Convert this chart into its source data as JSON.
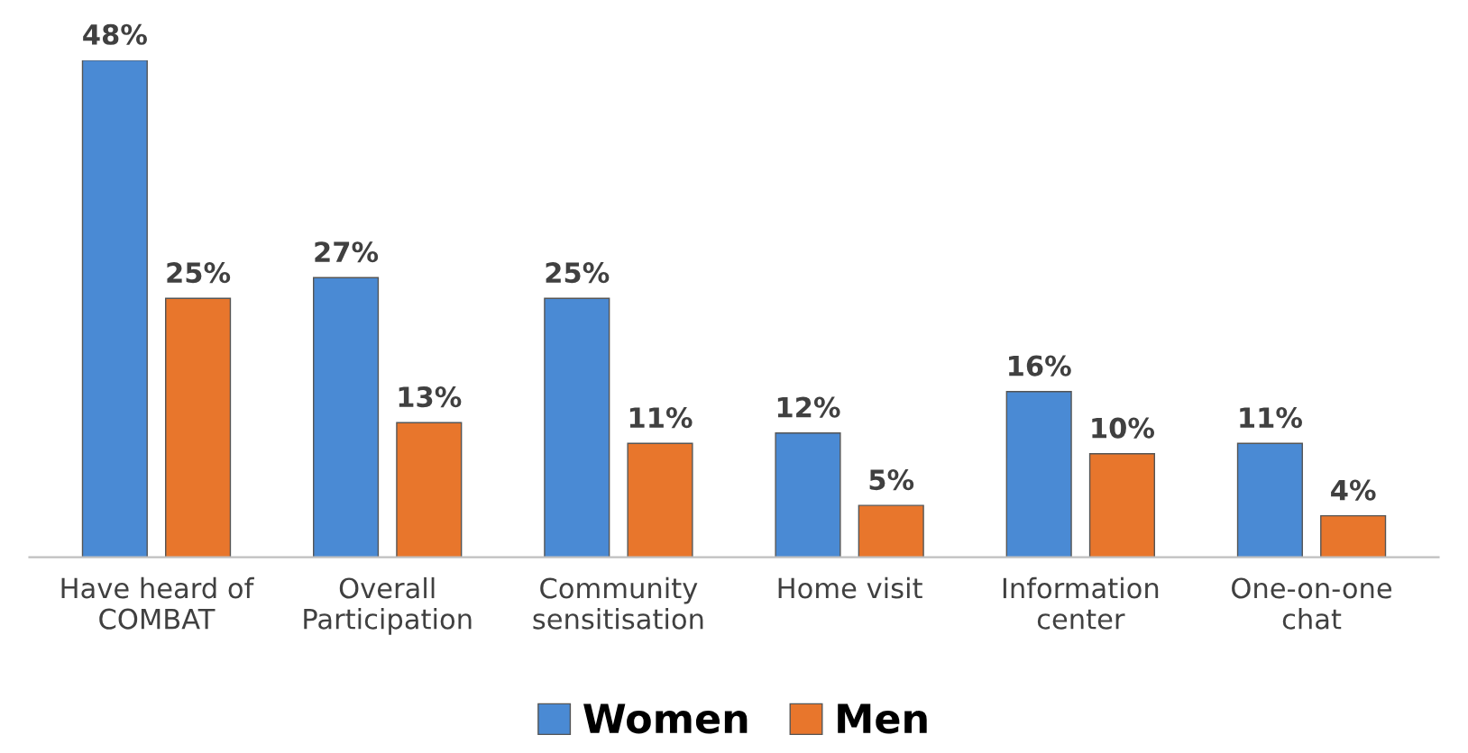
{
  "chart_data": {
    "type": "bar",
    "categories": [
      "Have heard of\nCOMBAT",
      "Overall\nParticipation",
      "Community\nsensitisation",
      "Home visit",
      "Information\ncenter",
      "One-on-one\nchat"
    ],
    "series": [
      {
        "name": "Women",
        "color": "#4a8ad4",
        "values": [
          48,
          27,
          25,
          12,
          16,
          11
        ],
        "value_labels": [
          "48%",
          "27%",
          "25%",
          "12%",
          "16%",
          "11%"
        ]
      },
      {
        "name": "Men",
        "color": "#e8762c",
        "values": [
          25,
          13,
          11,
          5,
          10,
          4
        ],
        "value_labels": [
          "25%",
          "13%",
          "11%",
          "5%",
          "10%",
          "4%"
        ]
      }
    ],
    "ylim": [
      0,
      48
    ],
    "tick_labels": "x",
    "grid": false,
    "legend": "bottom"
  }
}
